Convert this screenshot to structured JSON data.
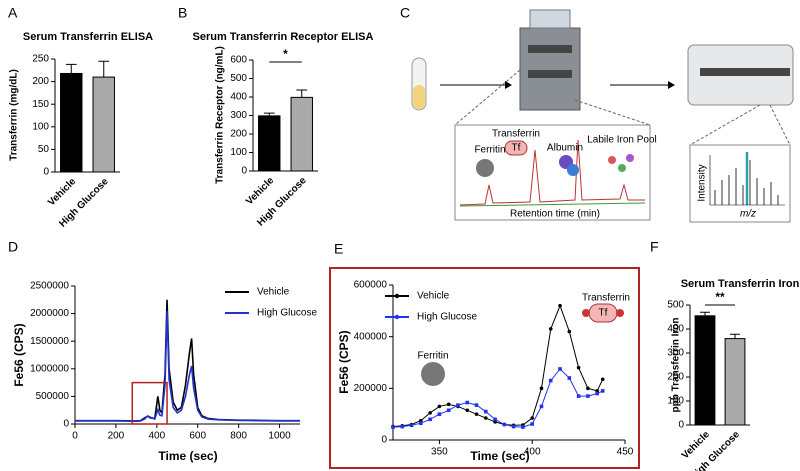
{
  "chart_data": [
    {
      "type": "bar",
      "panel": "A",
      "title": "Serum Transferrin ELISA",
      "ylabel": "Transferrin (mg/dL)",
      "categories": [
        "Vehicle",
        "High Glucose"
      ],
      "values": [
        218,
        210
      ],
      "errors": [
        20,
        35
      ],
      "colors": [
        "#000000",
        "#aaaaaa"
      ],
      "ylim": [
        0,
        250
      ],
      "yticks": [
        0,
        50,
        100,
        150,
        200,
        250
      ]
    },
    {
      "type": "bar",
      "panel": "B",
      "title": "Serum Transferrin Receptor ELISA",
      "ylabel": "Transferrin Receptor (ng/mL)",
      "categories": [
        "Vehicle",
        "High Glucose"
      ],
      "values": [
        298,
        398
      ],
      "errors": [
        15,
        40
      ],
      "colors": [
        "#000000",
        "#aaaaaa"
      ],
      "ylim": [
        0,
        600
      ],
      "yticks": [
        0,
        100,
        200,
        300,
        400,
        500,
        600
      ],
      "annotation": "*"
    },
    {
      "type": "line",
      "panel": "D",
      "xlabel": "Time (sec)",
      "ylabel": "Fe56 (CPS)",
      "legend": "upper right",
      "markers": false,
      "x": [
        0,
        100,
        200,
        300,
        320,
        340,
        355,
        370,
        390,
        405,
        415,
        425,
        440,
        450,
        460,
        480,
        500,
        520,
        540,
        560,
        570,
        580,
        600,
        620,
        650,
        700,
        800,
        900,
        1000,
        1100
      ],
      "series": [
        {
          "name": "Vehicle",
          "color": "#000000",
          "values": [
            60000,
            60000,
            60000,
            55000,
            60000,
            110000,
            140000,
            110000,
            100000,
            500000,
            250000,
            200000,
            900000,
            2250000,
            1000000,
            400000,
            250000,
            300000,
            700000,
            1300000,
            1550000,
            900000,
            300000,
            150000,
            100000,
            80000,
            70000,
            65000,
            60000,
            60000
          ]
        },
        {
          "name": "High Glucose",
          "color": "#2233cc",
          "values": [
            55000,
            55000,
            55000,
            50000,
            55000,
            90000,
            145000,
            120000,
            90000,
            260000,
            160000,
            150000,
            700000,
            2050000,
            800000,
            300000,
            200000,
            250000,
            500000,
            900000,
            1050000,
            650000,
            250000,
            130000,
            90000,
            75000,
            65000,
            60000,
            55000,
            55000
          ]
        }
      ],
      "xlim": [
        0,
        1100
      ],
      "xticks": [
        0,
        200,
        400,
        600,
        800,
        1000
      ],
      "ylim": [
        0,
        2500000
      ],
      "yticks": [
        0,
        500000,
        1000000,
        1500000,
        2000000,
        2500000
      ]
    },
    {
      "type": "line",
      "panel": "E",
      "xlabel": "Time (sec)",
      "ylabel": "Fe56 (CPS)",
      "legend": "upper left",
      "markers": true,
      "annotations": [
        "Ferritin",
        "Transferrin",
        "Tf"
      ],
      "x": [
        325,
        330,
        335,
        340,
        345,
        350,
        355,
        360,
        365,
        370,
        375,
        380,
        385,
        390,
        395,
        400,
        405,
        410,
        415,
        420,
        425,
        430,
        435,
        438
      ],
      "series": [
        {
          "name": "Vehicle",
          "color": "#000000",
          "values": [
            52000,
            55000,
            60000,
            75000,
            105000,
            130000,
            138000,
            130000,
            115000,
            100000,
            85000,
            70000,
            60000,
            57000,
            58000,
            85000,
            200000,
            430000,
            520000,
            420000,
            280000,
            200000,
            190000,
            235000
          ]
        },
        {
          "name": "High Glucose",
          "color": "#2233ee",
          "values": [
            50000,
            52000,
            57000,
            65000,
            80000,
            100000,
            115000,
            135000,
            145000,
            135000,
            110000,
            80000,
            60000,
            52000,
            50000,
            62000,
            130000,
            230000,
            275000,
            240000,
            170000,
            170000,
            180000,
            190000
          ]
        }
      ],
      "xlim": [
        325,
        450
      ],
      "xticks": [
        350,
        400,
        450
      ],
      "ylim": [
        0,
        600000
      ],
      "yticks": [
        0,
        200000,
        400000,
        600000
      ]
    },
    {
      "type": "bar",
      "panel": "F",
      "title": "Serum Transferrin Iron",
      "ylabel": "ppb Transferrin Iron",
      "categories": [
        "Vehicle",
        "High Glucose"
      ],
      "values": [
        455,
        360
      ],
      "errors": [
        15,
        18
      ],
      "colors": [
        "#000000",
        "#aaaaaa"
      ],
      "ylim": [
        0,
        500
      ],
      "yticks": [
        0,
        100,
        200,
        300,
        400,
        500
      ],
      "annotation": "**"
    }
  ],
  "diagram": {
    "panel": "C",
    "ferritin": "Ferritin",
    "transferrin": "Transferrin",
    "tf": "Tf",
    "albumin": "Albumin",
    "labile": "Labile Iron Pool",
    "retention": "Retention time (min)",
    "intensity": "Intensity",
    "mz": "m/z"
  }
}
